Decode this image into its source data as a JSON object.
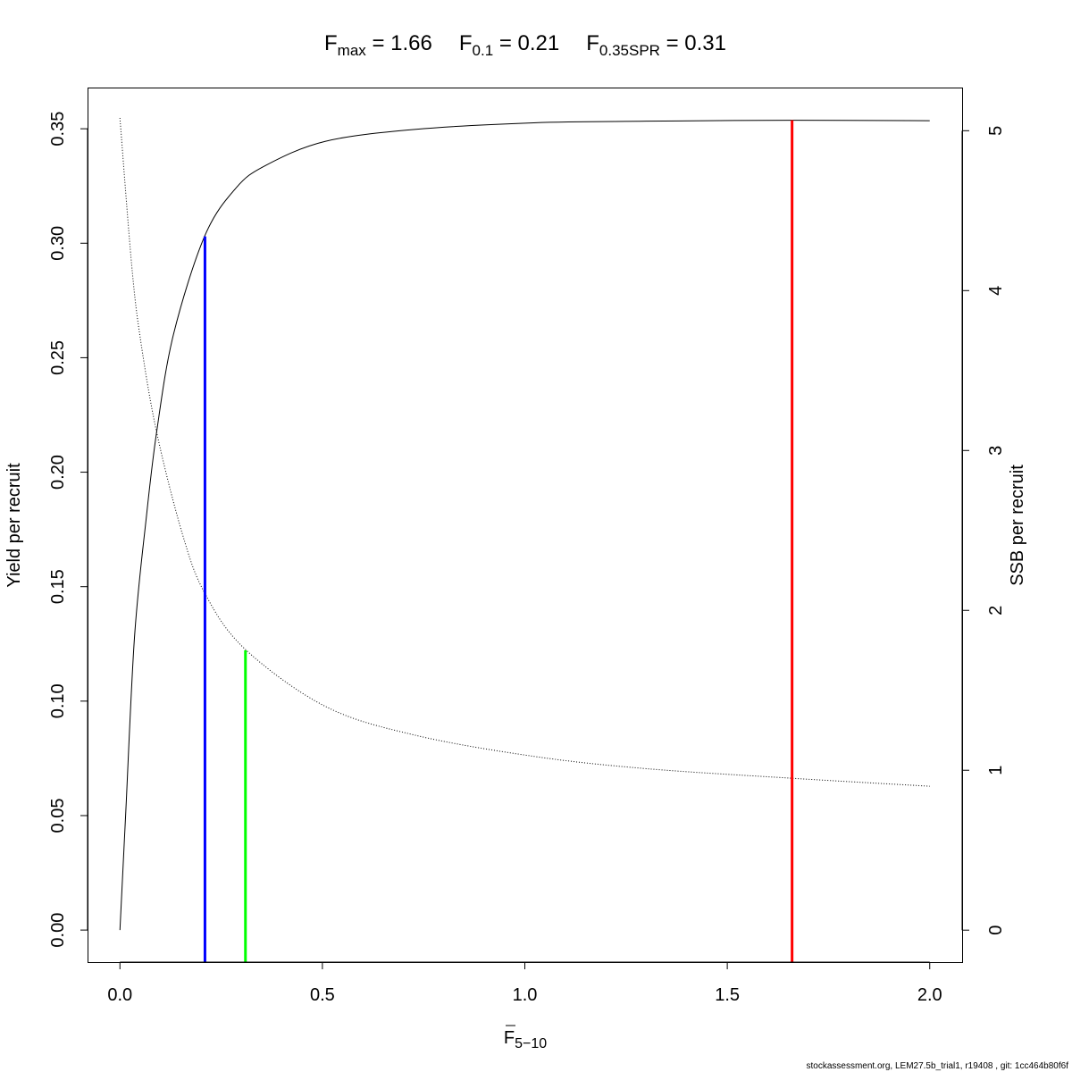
{
  "chart_data": {
    "type": "line",
    "title_items": [
      {
        "main": "F",
        "sub": "max",
        "value": "1.66"
      },
      {
        "main": "F",
        "sub": "0.1",
        "value": "0.21"
      },
      {
        "main": "F",
        "sub": "0.35SPR",
        "value": "0.31"
      }
    ],
    "xlabel": {
      "main": "F",
      "overline": true,
      "sub": "5−10"
    },
    "ylabel_left": "Yield per recruit",
    "ylabel_right": "SSB per recruit",
    "xlim": [
      -0.08,
      2.08
    ],
    "ylim_left": [
      -0.014,
      0.368
    ],
    "ylim_right": [
      -0.2,
      5.27
    ],
    "x_ticks": [
      "0.0",
      "0.5",
      "1.0",
      "1.5",
      "2.0"
    ],
    "y_left_ticks": [
      "0.00",
      "0.05",
      "0.10",
      "0.15",
      "0.20",
      "0.25",
      "0.30",
      "0.35"
    ],
    "y_right_ticks": [
      "0",
      "1",
      "2",
      "3",
      "4",
      "5"
    ],
    "grid": false,
    "series": [
      {
        "axis": "left",
        "style": "solid",
        "color": "#000000",
        "x": [
          0,
          0.014,
          0.036,
          0.065,
          0.091,
          0.132,
          0.209,
          0.286,
          0.36,
          0.507,
          0.728,
          1.022,
          1.3,
          1.66,
          2.0
        ],
        "y": [
          0,
          0.05,
          0.128,
          0.18,
          0.218,
          0.26,
          0.303,
          0.324,
          0.334,
          0.3445,
          0.3497,
          0.3526,
          0.3533,
          0.3537,
          0.3535
        ]
      },
      {
        "axis": "right",
        "style": "dotted",
        "color": "#000000",
        "x": [
          0,
          0.029,
          0.051,
          0.091,
          0.154,
          0.209,
          0.308,
          0.507,
          0.728,
          1.022,
          1.3,
          1.66,
          2.0
        ],
        "y": [
          5.08,
          4.16,
          3.69,
          3.11,
          2.48,
          2.11,
          1.76,
          1.4,
          1.22,
          1.087,
          1.01,
          0.95,
          0.9
        ]
      }
    ],
    "reference_lines": [
      {
        "name": "Fmax",
        "x": 1.66,
        "axis": "left",
        "top": 0.3537,
        "color": "#ff0000"
      },
      {
        "name": "F0.1",
        "x": 0.21,
        "axis": "left",
        "top": 0.303,
        "color": "#0000ff"
      },
      {
        "name": "F0.35SPR",
        "x": 0.31,
        "axis": "right",
        "top": 1.75,
        "color": "#00ff00"
      }
    ]
  },
  "footer": "stockassessment.org, LEM27.5b_trial1, r19408 , git: 1cc464b80f6f"
}
